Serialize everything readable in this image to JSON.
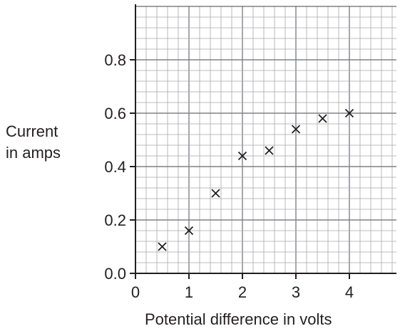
{
  "chart_data": {
    "type": "scatter",
    "title": "",
    "xlabel": "Potential difference in volts",
    "ylabel_lines": [
      "Current",
      "in amps"
    ],
    "xlim": [
      0,
      4.8
    ],
    "ylim": [
      0,
      1.0
    ],
    "x_ticks": [
      0,
      1,
      2,
      3,
      4
    ],
    "x_tick_labels": [
      "0",
      "1",
      "2",
      "3",
      "4"
    ],
    "y_ticks": [
      0.0,
      0.2,
      0.4,
      0.6,
      0.8
    ],
    "y_tick_labels": [
      "0.0",
      "0.2",
      "0.4",
      "0.6",
      "0.8"
    ],
    "grid": true,
    "marker": "x",
    "marker_color": "#231f20",
    "grid_color_minor": "#a7a9ac",
    "grid_color_major": "#808285",
    "points": [
      {
        "x": 0.5,
        "y": 0.1
      },
      {
        "x": 1.0,
        "y": 0.16
      },
      {
        "x": 1.5,
        "y": 0.3
      },
      {
        "x": 2.0,
        "y": 0.44
      },
      {
        "x": 2.5,
        "y": 0.46
      },
      {
        "x": 3.0,
        "y": 0.54
      },
      {
        "x": 3.5,
        "y": 0.58
      },
      {
        "x": 4.0,
        "y": 0.6
      }
    ]
  }
}
